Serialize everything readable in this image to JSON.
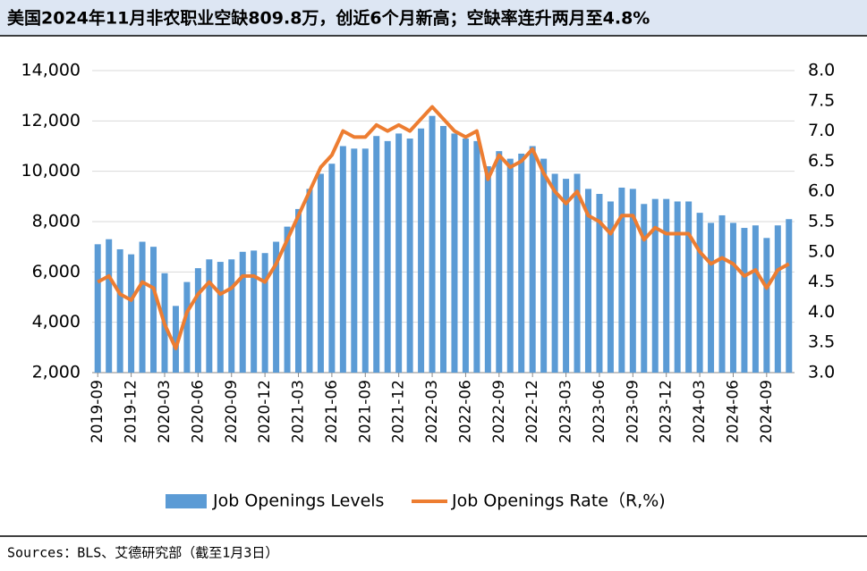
{
  "chart_data": {
    "type": "bar-line",
    "title": "美国2024年11月非农职业空缺809.8万，创近6个月新高；空缺率连升两月至4.8%",
    "source": "Sources：BLS、艾德研究部（截至1月3日）",
    "categories": [
      "2019-09",
      null,
      null,
      "2019-12",
      null,
      null,
      "2020-03",
      null,
      null,
      "2020-06",
      null,
      null,
      "2020-09",
      null,
      null,
      "2020-12",
      null,
      null,
      "2021-03",
      null,
      null,
      "2021-06",
      null,
      null,
      "2021-09",
      null,
      null,
      "2021-12",
      null,
      null,
      "2022-03",
      null,
      null,
      "2022-06",
      null,
      null,
      "2022-09",
      null,
      null,
      "2022-12",
      null,
      null,
      "2023-03",
      null,
      null,
      "2023-06",
      null,
      null,
      "2023-09",
      null,
      null,
      "2023-12",
      null,
      null,
      "2024-03",
      null,
      null,
      "2024-06",
      null,
      null,
      "2024-09",
      null,
      null
    ],
    "series": [
      {
        "name": "Job Openings Levels",
        "color": "#5b9bd5",
        "values": [
          7100,
          7300,
          6900,
          6700,
          7200,
          7000,
          5950,
          4650,
          5600,
          6150,
          6500,
          6400,
          6500,
          6800,
          6850,
          6750,
          7200,
          7800,
          8500,
          9300,
          9900,
          10300,
          11000,
          10900,
          10900,
          11400,
          11200,
          11500,
          11300,
          11700,
          12200,
          11800,
          11500,
          11300,
          11200,
          10200,
          10800,
          10500,
          10700,
          11000,
          10500,
          9900,
          9700,
          9900,
          9300,
          9100,
          8800,
          9350,
          9300,
          8700,
          8900,
          8900,
          8800,
          8800,
          8350,
          7950,
          8250,
          7950,
          7750,
          7850,
          7350,
          7850,
          8098
        ]
      },
      {
        "name": "Job Openings Rate（R,%)",
        "color": "#ed7d31",
        "axis": "y2",
        "values": [
          4.5,
          4.6,
          4.3,
          4.2,
          4.5,
          4.4,
          3.8,
          3.4,
          4.0,
          4.3,
          4.5,
          4.3,
          4.4,
          4.6,
          4.6,
          4.5,
          4.8,
          5.2,
          5.6,
          6.0,
          6.4,
          6.6,
          7.0,
          6.9,
          6.9,
          7.1,
          7.0,
          7.1,
          7.0,
          7.2,
          7.4,
          7.2,
          7.0,
          6.9,
          7.0,
          6.2,
          6.6,
          6.4,
          6.5,
          6.7,
          6.3,
          6.0,
          5.8,
          6.0,
          5.6,
          5.5,
          5.3,
          5.6,
          5.6,
          5.2,
          5.4,
          5.3,
          5.3,
          5.3,
          5.0,
          4.8,
          4.9,
          4.8,
          4.6,
          4.7,
          4.4,
          4.7,
          4.8
        ]
      }
    ],
    "ylim": [
      2000,
      14000
    ],
    "yticks": [
      {
        "value": 2000,
        "label": "2,000"
      },
      {
        "value": 4000,
        "label": "4,000"
      },
      {
        "value": 6000,
        "label": "6,000"
      },
      {
        "value": 8000,
        "label": "8,000"
      },
      {
        "value": 10000,
        "label": "10,000"
      },
      {
        "value": 12000,
        "label": "12,000"
      },
      {
        "value": 14000,
        "label": "14,000"
      }
    ],
    "y2lim": [
      3.0,
      8.0
    ],
    "y2ticks": [
      {
        "value": 3,
        "label": "3.0"
      },
      3.5,
      {
        "value": 4,
        "label": "4.0"
      },
      4.5,
      {
        "value": 5,
        "label": "5.0"
      },
      5.5,
      {
        "value": 6,
        "label": "6.0"
      },
      6.5,
      {
        "value": 7,
        "label": "7.0"
      },
      7.5,
      {
        "value": 8,
        "label": "8.0"
      }
    ],
    "grid": true,
    "legend": "bottom"
  }
}
